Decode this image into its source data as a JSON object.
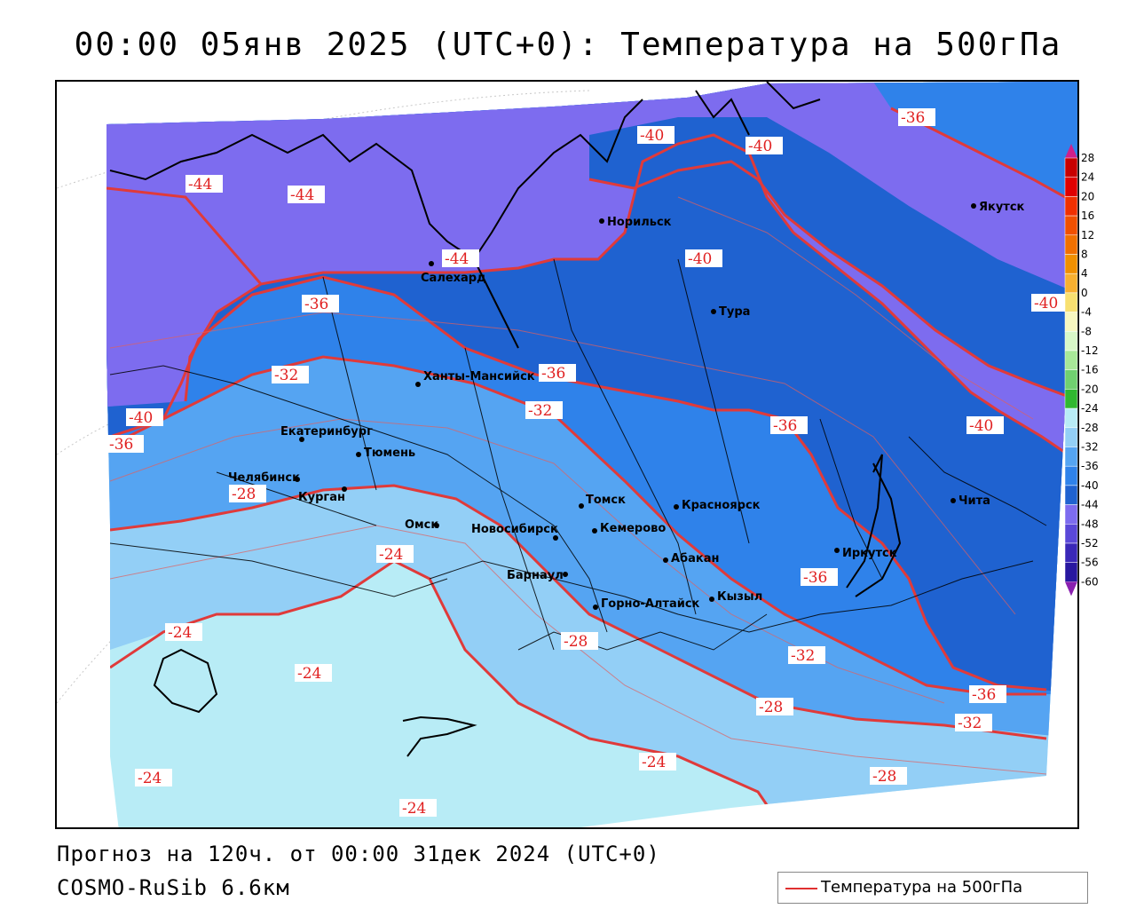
{
  "title": "00:00 05янв 2025 (UTC+0): Температура на 500гПа",
  "footer": {
    "forecast": "Прогноз на 120ч. от 00:00 31дек 2024 (UTC+0)",
    "model": "COSMO-RuSib 6.6км"
  },
  "legend": {
    "label": "Температура на 500гПа"
  },
  "colors": {
    "iso_line": "#e03a3a",
    "zone_minus44": "#7d6cef",
    "zone_minus40": "#8070e8",
    "zone_minus36": "#1f62d0",
    "zone_minus32": "#2f82ea",
    "zone_minus28": "#55a4f2",
    "zone_minus24": "#93cff6",
    "zone_minus20": "#b8ecf6"
  },
  "cities": [
    {
      "name": "Норильск"
    },
    {
      "name": "Якутск"
    },
    {
      "name": "Салехард"
    },
    {
      "name": "Тура"
    },
    {
      "name": "Ханты-Мансийск"
    },
    {
      "name": "Екатеринбург"
    },
    {
      "name": "Тюмень"
    },
    {
      "name": "Челябинск"
    },
    {
      "name": "Курган"
    },
    {
      "name": "Омск"
    },
    {
      "name": "Новосибирск"
    },
    {
      "name": "Томск"
    },
    {
      "name": "Кемерово"
    },
    {
      "name": "Красноярск"
    },
    {
      "name": "Барнаул"
    },
    {
      "name": "Абакан"
    },
    {
      "name": "Горно-Алтайск"
    },
    {
      "name": "Кызыл"
    },
    {
      "name": "Иркутск"
    },
    {
      "name": "Чита"
    }
  ],
  "isoline_labels": [
    "-44",
    "-44",
    "-44",
    "-40",
    "-40",
    "-40",
    "-40",
    "-40",
    "-40",
    "-36",
    "-36",
    "-36",
    "-36",
    "-36",
    "-36",
    "-36",
    "-32",
    "-32",
    "-32",
    "-32",
    "-28",
    "-28",
    "-28",
    "-28",
    "-24",
    "-24",
    "-24",
    "-24",
    "-24",
    "-24"
  ],
  "colorbar": {
    "ticks": [
      "28",
      "24",
      "20",
      "16",
      "12",
      "8",
      "4",
      "0",
      "-4",
      "-8",
      "-12",
      "-16",
      "-20",
      "-24",
      "-28",
      "-32",
      "-36",
      "-40",
      "-44",
      "-48",
      "-52",
      "-56",
      "-60"
    ],
    "colors": [
      "#c80000",
      "#e00000",
      "#f03000",
      "#f05000",
      "#f07000",
      "#f09000",
      "#f8b030",
      "#f8e070",
      "#f8f8c0",
      "#d8f8c8",
      "#a8e898",
      "#70d070",
      "#30b830",
      "#b8ecf6",
      "#93cff6",
      "#55a4f2",
      "#2f82ea",
      "#1f62d0",
      "#7d6cef",
      "#5a48d8",
      "#3a28b8",
      "#2818a0",
      "#180c88"
    ]
  }
}
